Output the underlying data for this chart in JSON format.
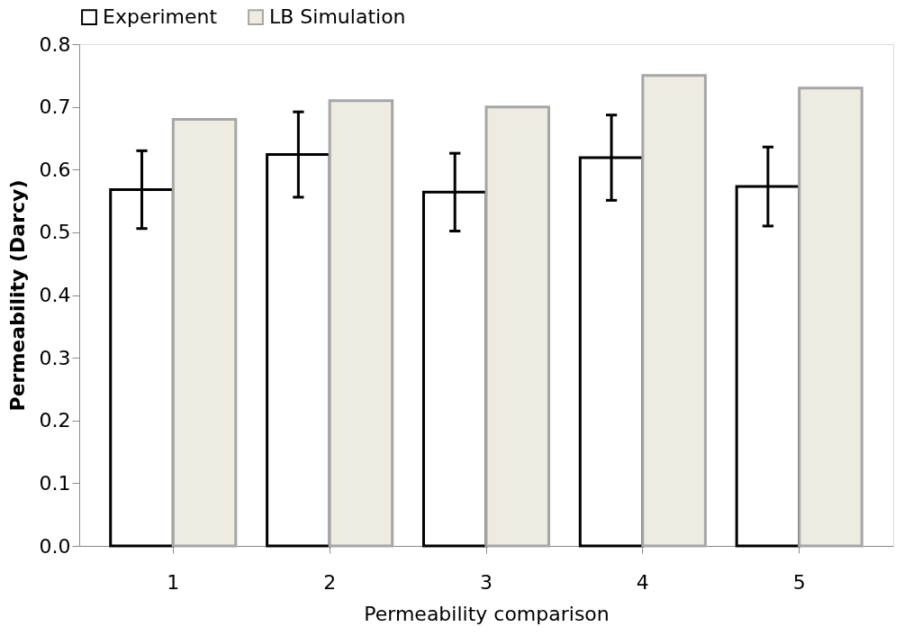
{
  "chart_data": {
    "type": "bar",
    "xlabel": "Permeability comparison",
    "ylabel": "Permeability (Darcy)",
    "categories": [
      "1",
      "2",
      "3",
      "4",
      "5"
    ],
    "series": [
      {
        "name": "Experiment",
        "color": "#ffffff",
        "values": [
          0.568,
          0.624,
          0.564,
          0.619,
          0.573
        ],
        "errors": [
          0.062,
          0.068,
          0.062,
          0.068,
          0.063
        ]
      },
      {
        "name": "LB Simulation",
        "color": "#eeebe0",
        "values": [
          0.68,
          0.71,
          0.7,
          0.75,
          0.73
        ]
      }
    ],
    "ylim": [
      0,
      0.8
    ],
    "yticks": [
      {
        "value": 0,
        "label": "0.0"
      },
      0.1,
      0.2,
      0.3,
      0.4,
      0.5,
      0.6,
      0.7,
      0.8
    ],
    "grid": false,
    "legend": "top"
  }
}
